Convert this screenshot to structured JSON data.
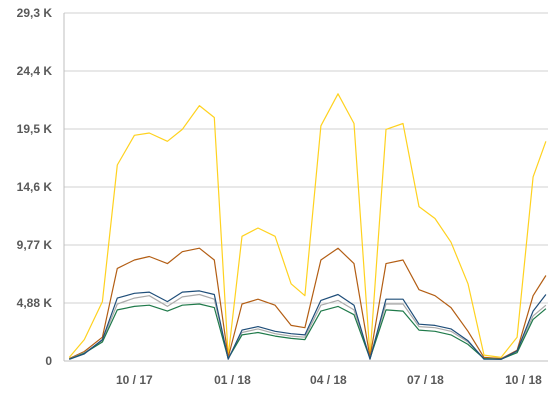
{
  "chart_data": {
    "type": "line",
    "title": "",
    "xlabel": "",
    "ylabel": "",
    "ylim": [
      0,
      29300
    ],
    "y_ticks": [
      {
        "value": 0,
        "label": "0"
      },
      {
        "value": 4883,
        "label": "4,88 K"
      },
      {
        "value": 9767,
        "label": "9,77 K"
      },
      {
        "value": 14650,
        "label": "14,6 K"
      },
      {
        "value": 19533,
        "label": "19,5 K"
      },
      {
        "value": 24417,
        "label": "24,4 K"
      },
      {
        "value": 29300,
        "label": "29,3 K"
      }
    ],
    "x_range": [
      "2017-07-27",
      "2018-10-24"
    ],
    "x_ticks": [
      {
        "date": "2017-10-01",
        "label": "10 / 17"
      },
      {
        "date": "2018-01-01",
        "label": "01 / 18"
      },
      {
        "date": "2018-04-01",
        "label": "04 / 18"
      },
      {
        "date": "2018-07-01",
        "label": "07 / 18"
      },
      {
        "date": "2018-10-01",
        "label": "10 / 18"
      }
    ],
    "grid": true,
    "legend": "none",
    "x": [
      "2017-08-01",
      "2017-08-15",
      "2017-09-01",
      "2017-09-15",
      "2017-10-01",
      "2017-10-15",
      "2017-11-01",
      "2017-11-15",
      "2017-12-01",
      "2017-12-15",
      "2017-12-28",
      "2018-01-10",
      "2018-01-25",
      "2018-02-10",
      "2018-02-25",
      "2018-03-10",
      "2018-03-25",
      "2018-04-10",
      "2018-04-25",
      "2018-05-10",
      "2018-05-25",
      "2018-06-10",
      "2018-06-25",
      "2018-07-10",
      "2018-07-25",
      "2018-08-10",
      "2018-08-25",
      "2018-09-10",
      "2018-09-25",
      "2018-10-10",
      "2018-10-22"
    ],
    "series": [
      {
        "color": "#ffd21f",
        "values": [
          300,
          1800,
          5000,
          16500,
          19000,
          19200,
          18500,
          19500,
          21500,
          20500,
          400,
          10500,
          11200,
          10500,
          6500,
          5500,
          19800,
          22500,
          20000,
          400,
          19500,
          20000,
          13000,
          12000,
          10000,
          6500,
          500,
          300,
          2000,
          15500,
          18500
        ]
      },
      {
        "color": "#b35e14",
        "values": [
          200,
          800,
          2000,
          7800,
          8500,
          8800,
          8200,
          9200,
          9500,
          8500,
          300,
          4800,
          5200,
          4700,
          3000,
          2800,
          8500,
          9500,
          8200,
          300,
          8200,
          8500,
          6000,
          5500,
          4500,
          2500,
          300,
          200,
          900,
          5500,
          7200
        ]
      },
      {
        "color": "#aaaaaa",
        "values": [
          150,
          700,
          1700,
          4800,
          5300,
          5500,
          4600,
          5400,
          5600,
          5200,
          200,
          2400,
          2700,
          2300,
          2100,
          2000,
          4700,
          5100,
          4300,
          200,
          4800,
          4800,
          2900,
          2800,
          2500,
          1600,
          200,
          150,
          800,
          3800,
          4700
        ]
      },
      {
        "color": "#1f7a4a",
        "values": [
          150,
          650,
          1600,
          4300,
          4600,
          4700,
          4200,
          4700,
          4800,
          4500,
          200,
          2200,
          2400,
          2100,
          1900,
          1800,
          4200,
          4600,
          3900,
          200,
          4300,
          4200,
          2600,
          2500,
          2200,
          1400,
          200,
          150,
          700,
          3500,
          4400
        ]
      },
      {
        "color": "#1f4e79",
        "values": [
          140,
          600,
          1800,
          5300,
          5700,
          5800,
          5000,
          5800,
          5900,
          5600,
          150,
          2600,
          2900,
          2500,
          2300,
          2200,
          5100,
          5600,
          4700,
          150,
          5200,
          5200,
          3100,
          3000,
          2700,
          1700,
          150,
          140,
          850,
          4200,
          5600
        ]
      }
    ]
  }
}
